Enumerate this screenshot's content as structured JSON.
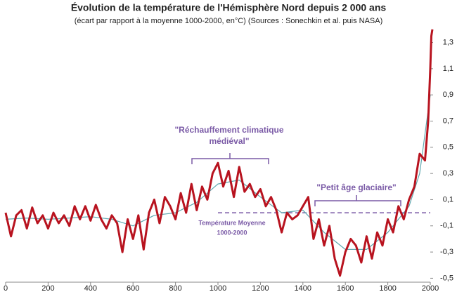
{
  "chart_data": {
    "type": "line",
    "title": "Évolution de la température de l'Hémisphère Nord depuis 2 000 ans",
    "subtitle": "(écart par rapport à la moyenne 1000-2000, en°C) (Sources : Sonechkin et al. puis NASA)",
    "annotations": [
      "\"Réchauffement climatique",
      "médiéval\"",
      "\"Petit âge glaciaire\"",
      "Température Moyenne",
      "1000-2000"
    ],
    "mean_line": {
      "value": 0,
      "x": [
        1000,
        2000
      ]
    },
    "xlim": [
      0,
      2000
    ],
    "xticks": [
      0,
      200,
      400,
      600,
      800,
      1000,
      1200,
      1400,
      1600,
      1800,
      2000
    ],
    "ylim": [
      -0.53,
      1.41
    ],
    "yticks": [
      {
        "value": 1.3,
        "label": "1,3"
      },
      {
        "value": 1.1,
        "label": "1,1"
      },
      {
        "value": 0.9,
        "label": "0,9"
      },
      {
        "value": 0.7,
        "label": "0,7"
      },
      {
        "value": 0.5,
        "label": "0,5"
      },
      {
        "value": 0.3,
        "label": "0,3"
      },
      {
        "value": 0.1,
        "label": "0,1"
      },
      {
        "value": -0.1,
        "label": "-0,1"
      },
      {
        "value": -0.3,
        "label": "-0,3"
      },
      {
        "value": -0.5,
        "label": "-0,5"
      }
    ],
    "series": [
      {
        "color": "#b8131f",
        "x": [
          0,
          25,
          50,
          75,
          100,
          125,
          150,
          175,
          200,
          225,
          250,
          275,
          300,
          325,
          350,
          375,
          400,
          425,
          450,
          475,
          500,
          525,
          550,
          575,
          600,
          625,
          650,
          675,
          700,
          725,
          750,
          775,
          800,
          825,
          850,
          875,
          900,
          925,
          950,
          975,
          1000,
          1025,
          1050,
          1075,
          1100,
          1125,
          1150,
          1175,
          1200,
          1225,
          1250,
          1275,
          1300,
          1325,
          1350,
          1375,
          1400,
          1425,
          1450,
          1475,
          1500,
          1525,
          1550,
          1575,
          1600,
          1625,
          1650,
          1675,
          1700,
          1725,
          1750,
          1775,
          1800,
          1825,
          1850,
          1875,
          1900,
          1925,
          1950,
          1975,
          1990,
          2000,
          2005,
          2010
        ],
        "values": [
          0.0,
          -0.18,
          -0.02,
          0.02,
          -0.12,
          0.04,
          -0.08,
          -0.02,
          -0.12,
          0.0,
          -0.08,
          -0.02,
          -0.1,
          0.05,
          -0.05,
          0.05,
          -0.06,
          0.06,
          -0.05,
          -0.12,
          -0.02,
          -0.08,
          -0.3,
          -0.05,
          -0.2,
          -0.02,
          -0.28,
          0.0,
          0.1,
          -0.08,
          0.12,
          0.05,
          -0.05,
          0.15,
          0.0,
          0.22,
          0.02,
          0.2,
          0.1,
          0.3,
          0.38,
          0.2,
          0.32,
          0.12,
          0.35,
          0.16,
          0.22,
          0.12,
          0.18,
          0.05,
          0.12,
          0.02,
          -0.15,
          0.0,
          -0.05,
          -0.02,
          0.05,
          0.12,
          -0.2,
          -0.05,
          -0.25,
          -0.1,
          -0.35,
          -0.48,
          -0.3,
          -0.2,
          -0.25,
          -0.38,
          -0.18,
          -0.35,
          -0.15,
          -0.25,
          -0.05,
          -0.15,
          0.05,
          -0.05,
          0.1,
          0.2,
          0.45,
          0.4,
          0.7,
          1.1,
          1.35,
          1.4
        ]
      },
      {
        "color": "#5fa8b0",
        "x": [
          0,
          100,
          200,
          300,
          400,
          500,
          600,
          700,
          800,
          900,
          1000,
          1100,
          1200,
          1300,
          1400,
          1500,
          1600,
          1700,
          1800,
          1850,
          1900,
          1950,
          2000
        ],
        "values": [
          -0.05,
          -0.04,
          -0.05,
          -0.04,
          -0.03,
          -0.05,
          -0.1,
          -0.02,
          0.0,
          0.08,
          0.22,
          0.25,
          0.12,
          0.0,
          0.02,
          -0.15,
          -0.28,
          -0.28,
          -0.15,
          -0.05,
          0.05,
          0.3,
          0.9
        ]
      }
    ]
  }
}
